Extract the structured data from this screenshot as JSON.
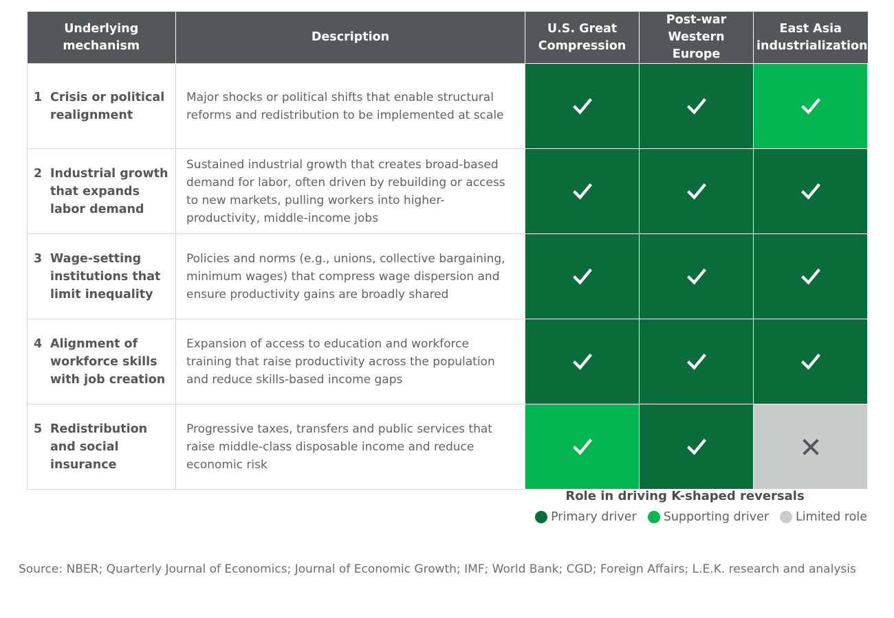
{
  "chart_data": {
    "type": "table",
    "columns": [
      "Underlying mechanism",
      "Description",
      "U.S. Great Compression",
      "Post-war Western Europe",
      "East Asia industrialization"
    ],
    "cases": [
      "U.S. Great Compression",
      "Post-war Western Europe",
      "East Asia industrialization"
    ],
    "rows": [
      {
        "number": "1",
        "mechanism": "Crisis or political realignment",
        "description": "Major shocks or political shifts that enable structural reforms and redistribution to be implemented at scale",
        "roles": [
          "primary",
          "primary",
          "supporting"
        ]
      },
      {
        "number": "2",
        "mechanism": "Industrial growth that expands labor demand",
        "description": "Sustained industrial growth that creates broad-based demand for labor, often driven by rebuilding or access to new markets, pulling workers into higher-productivity, middle-income jobs",
        "roles": [
          "primary",
          "primary",
          "primary"
        ]
      },
      {
        "number": "3",
        "mechanism": "Wage-setting institutions that limit inequality",
        "description": "Policies and norms (e.g., unions, collective bargaining, minimum wages) that compress wage dispersion and ensure productivity gains are broadly shared",
        "roles": [
          "primary",
          "primary",
          "primary"
        ]
      },
      {
        "number": "4",
        "mechanism": "Alignment of workforce skills with job creation",
        "description": "Expansion of access to education and workforce training that raise productivity across the population and reduce skills-based income gaps",
        "roles": [
          "primary",
          "primary",
          "primary"
        ]
      },
      {
        "number": "5",
        "mechanism": "Redistribution and social insurance",
        "description": "Progressive taxes, transfers and public services that raise middle-class disposable income and reduce economic risk",
        "roles": [
          "supporting",
          "primary",
          "limited"
        ]
      }
    ],
    "legend": {
      "title": "Role in driving K-shaped reversals",
      "items": [
        {
          "key": "primary",
          "label": "Primary driver",
          "color": "#0a6b3b",
          "mark": "check-icon"
        },
        {
          "key": "supporting",
          "label": "Supporting driver",
          "color": "#05b650",
          "mark": "check-icon"
        },
        {
          "key": "limited",
          "label": "Limited role",
          "color": "#c8cdcc",
          "mark": "cross-icon"
        }
      ],
      "placement": "bottom-right"
    }
  },
  "colors": {
    "header_bg": "#53575b",
    "check_mark": "#ffffff",
    "cross_mark": "#53575b"
  },
  "source": "Source: NBER; Quarterly Journal of Economics; Journal of Economic Growth; IMF; World Bank; CGD; Foreign Affairs; L.E.K. research and analysis"
}
